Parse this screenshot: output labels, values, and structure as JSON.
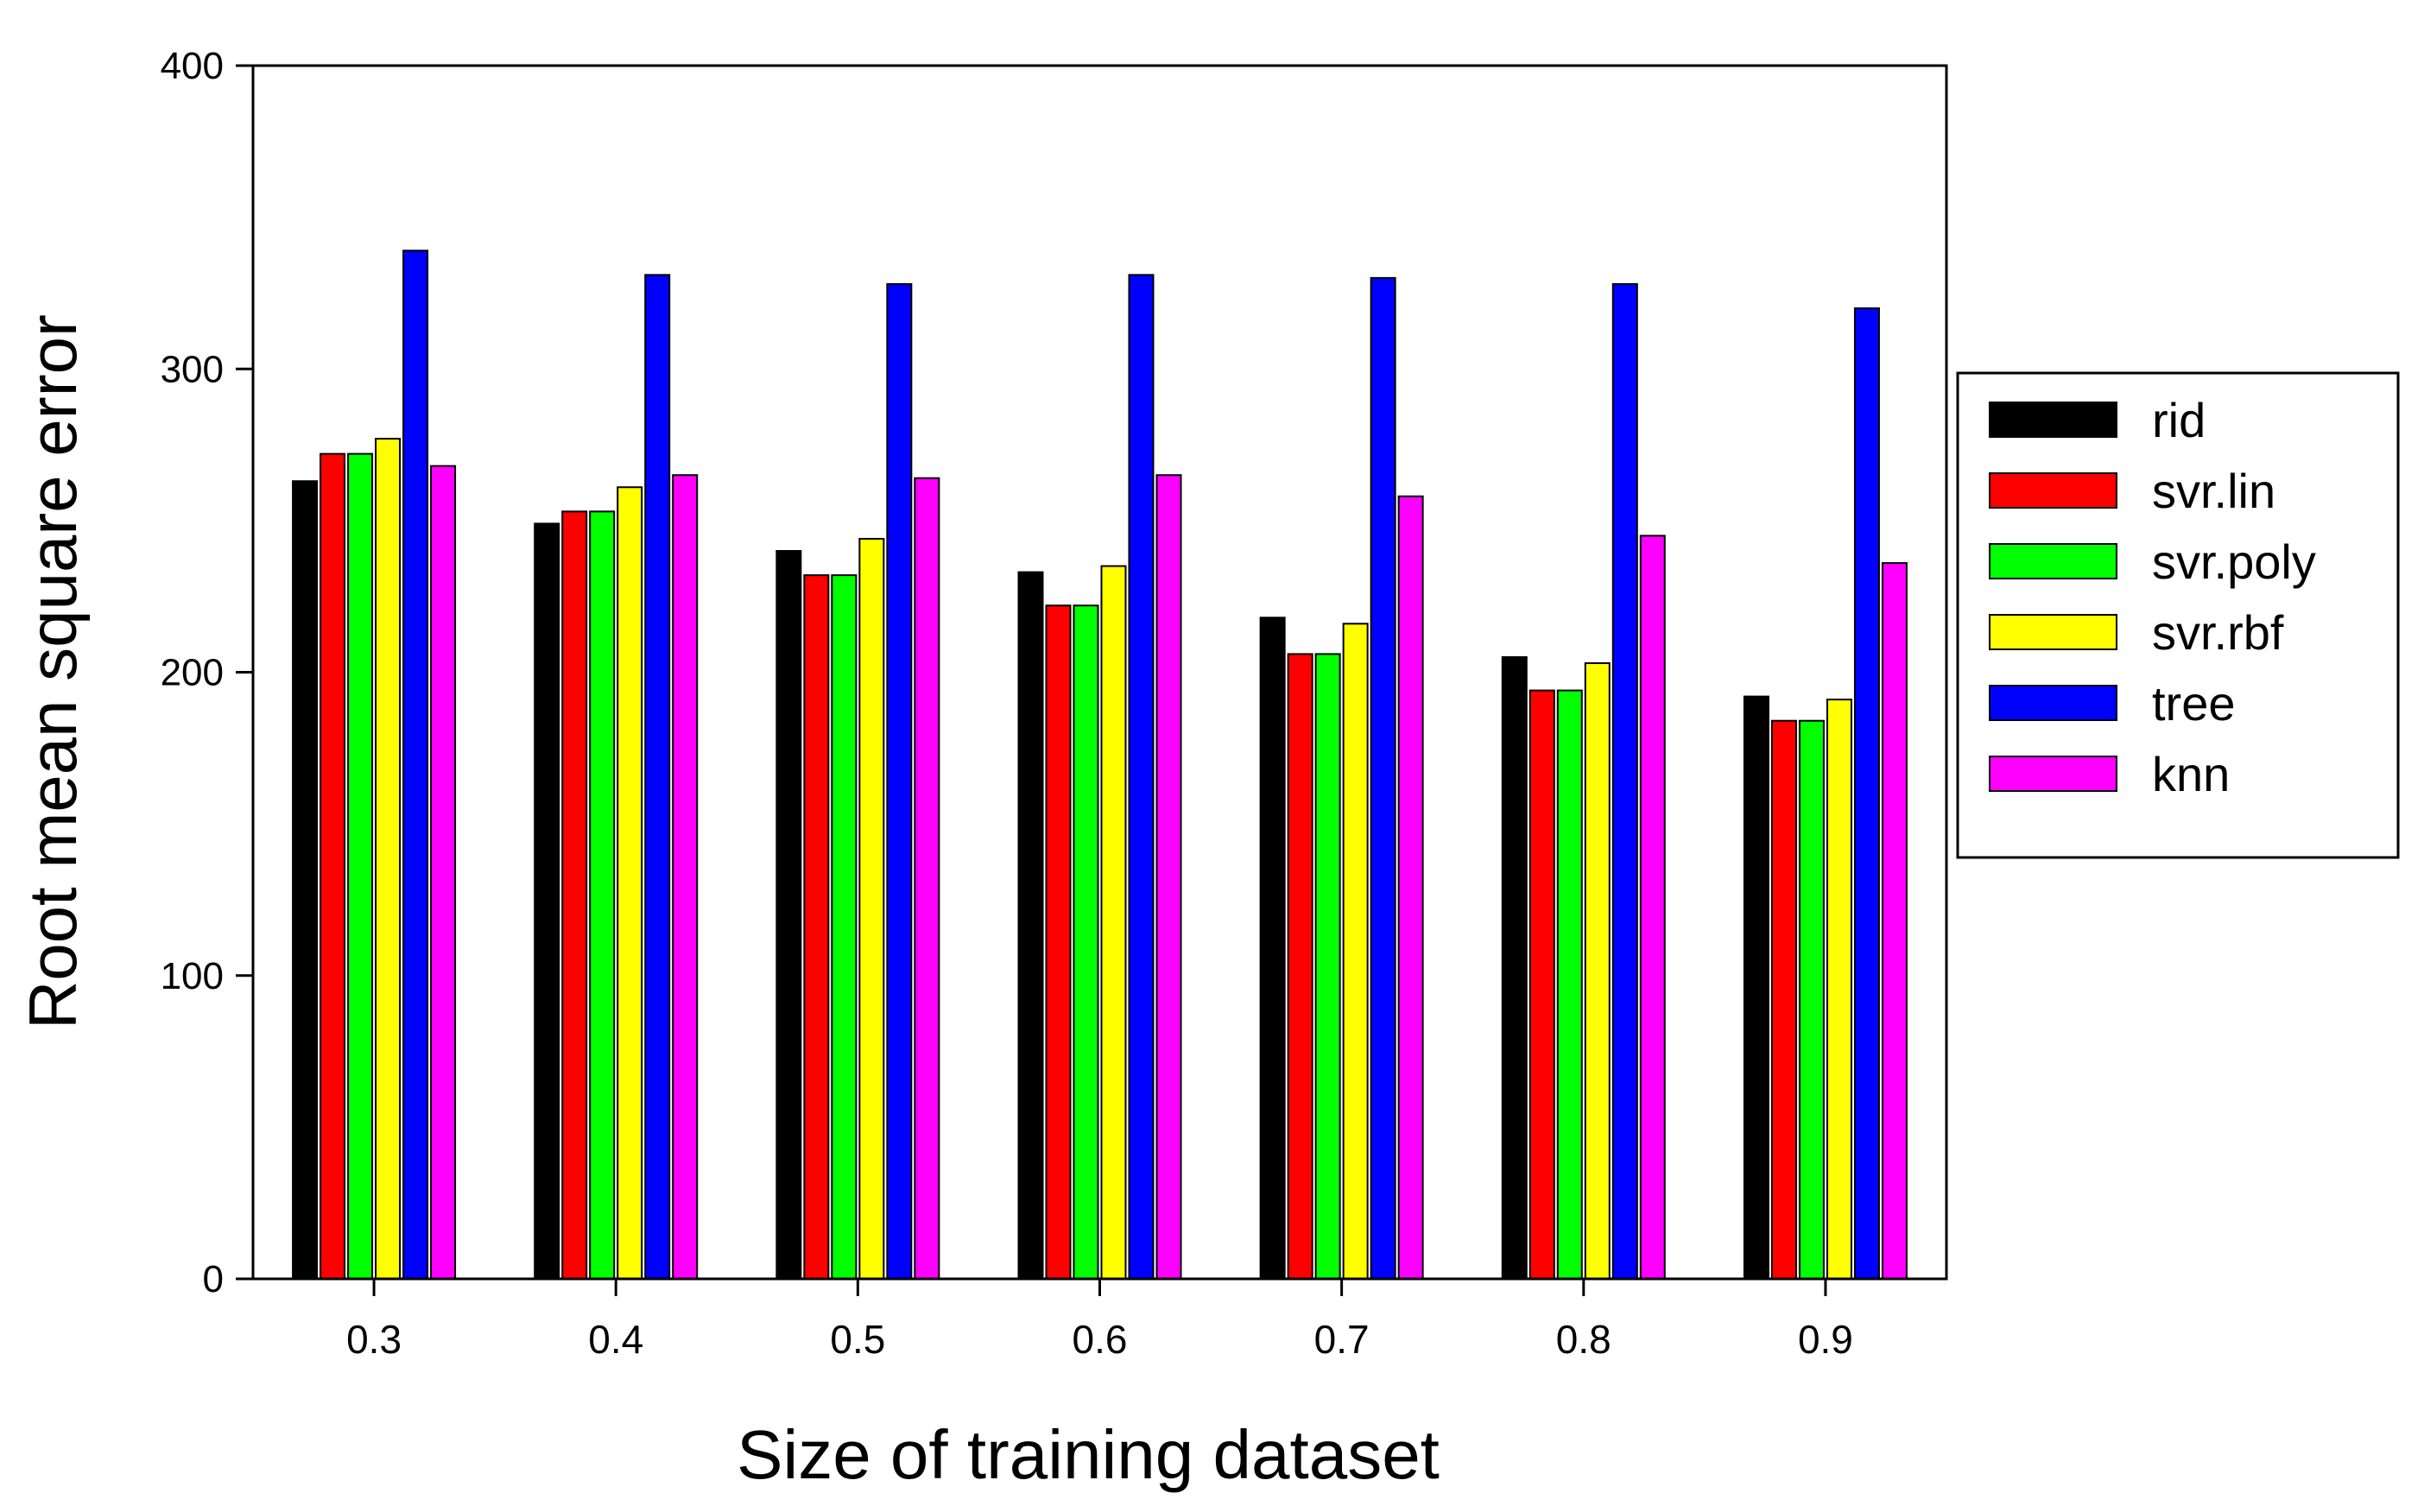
{
  "chart_data": {
    "type": "bar",
    "xlabel": "Size of training dataset",
    "ylabel": "Root mean square error",
    "ylim": [
      0,
      400
    ],
    "yticks": [
      "0",
      "100",
      "200",
      "300",
      "400"
    ],
    "categories": [
      "0.3",
      "0.4",
      "0.5",
      "0.6",
      "0.7",
      "0.8",
      "0.9"
    ],
    "legend_position": "right",
    "grid": false,
    "series": [
      {
        "name": "rid",
        "color": "#000000",
        "values": [
          263,
          249,
          240,
          233,
          218,
          205,
          192
        ]
      },
      {
        "name": "svr.lin",
        "color": "#ff0000",
        "values": [
          272,
          253,
          232,
          222,
          206,
          194,
          184
        ]
      },
      {
        "name": "svr.poly",
        "color": "#00ff00",
        "values": [
          272,
          253,
          232,
          222,
          206,
          194,
          184
        ]
      },
      {
        "name": "svr.rbf",
        "color": "#ffff00",
        "values": [
          277,
          261,
          244,
          235,
          216,
          203,
          191
        ]
      },
      {
        "name": "tree",
        "color": "#0000ff",
        "values": [
          339,
          331,
          328,
          331,
          330,
          328,
          320
        ]
      },
      {
        "name": "knn",
        "color": "#ff00ff",
        "values": [
          268,
          265,
          264,
          265,
          258,
          245,
          236
        ]
      }
    ]
  }
}
